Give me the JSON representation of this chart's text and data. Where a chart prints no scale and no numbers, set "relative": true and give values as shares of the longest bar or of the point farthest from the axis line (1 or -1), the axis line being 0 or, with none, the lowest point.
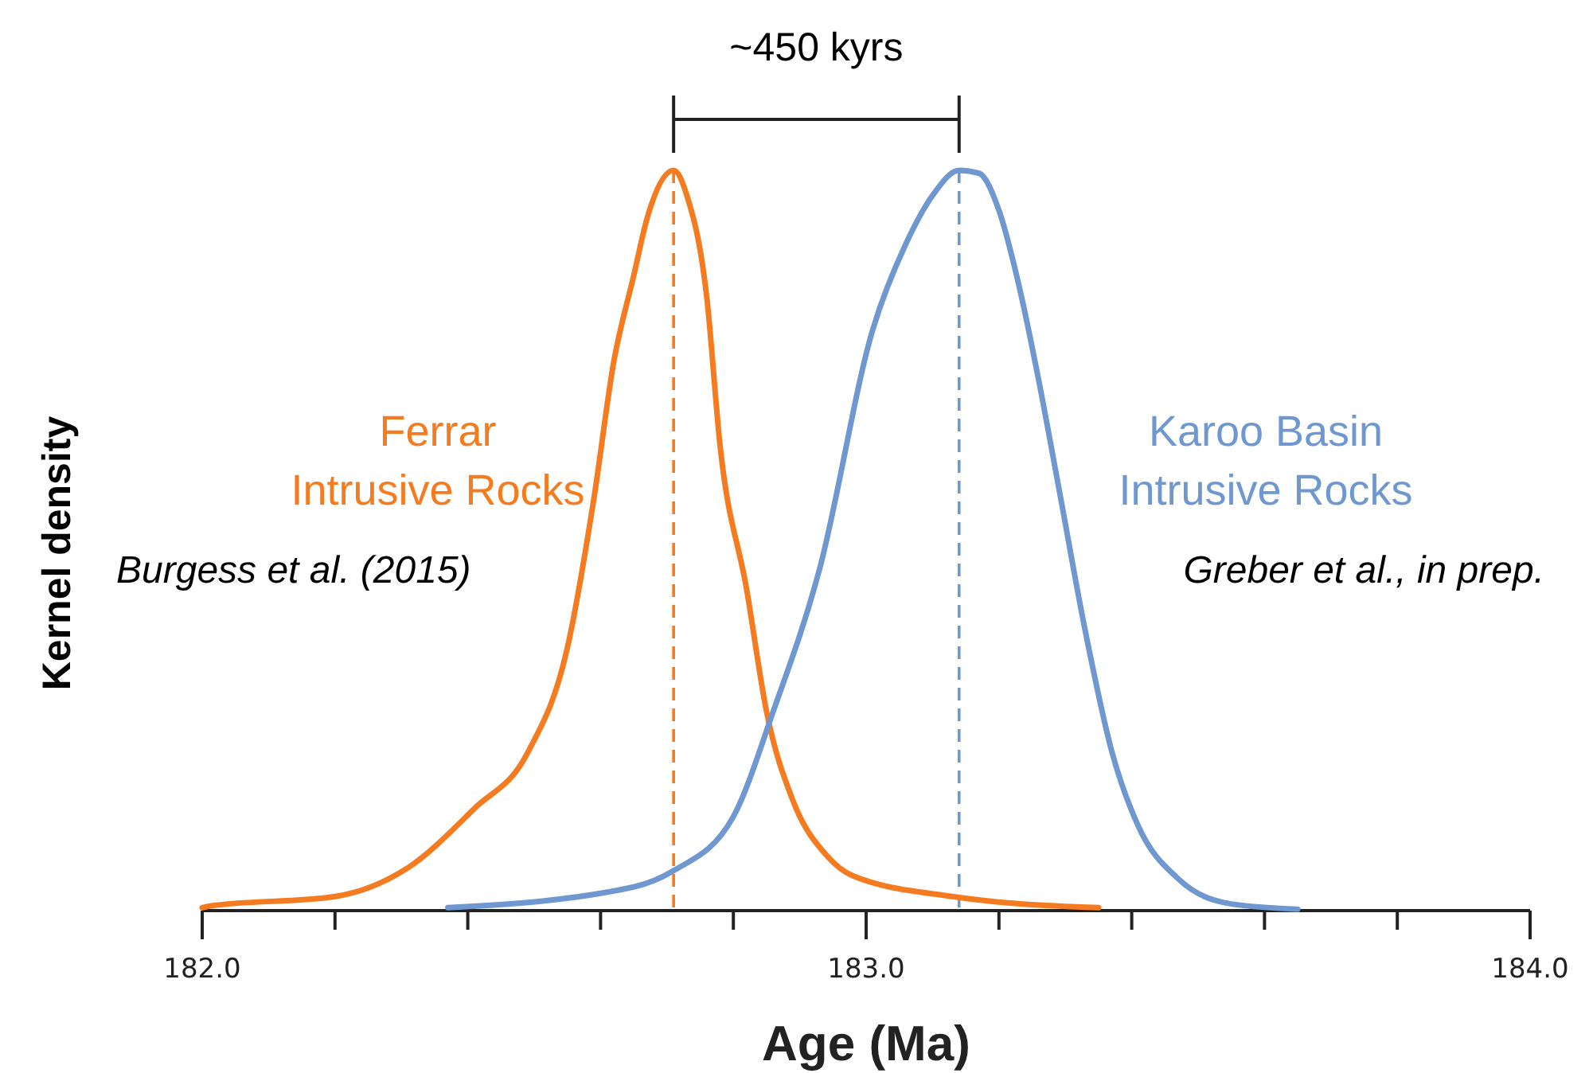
{
  "chart_data": {
    "type": "line",
    "relative": true,
    "xlabel": "Age (Ma)",
    "ylabel": "Kernel density",
    "xlim": [
      182,
      184
    ],
    "xticks": [
      {
        "value": 182,
        "label": "182.0"
      },
      {
        "value": 182.2,
        "label": null
      },
      {
        "value": 182.4,
        "label": null
      },
      {
        "value": 182.6,
        "label": null
      },
      {
        "value": 182.8,
        "label": null
      },
      {
        "value": 183,
        "label": "183.0"
      },
      {
        "value": 183.2,
        "label": null
      },
      {
        "value": 183.4,
        "label": null
      },
      {
        "value": 183.6,
        "label": null
      },
      {
        "value": 183.8,
        "label": null
      },
      {
        "value": 184,
        "label": "184.0"
      }
    ],
    "tick_labels": "x",
    "grid": false,
    "line_style": "solid",
    "series": [
      {
        "name": "Ferrar\nIntrusive Rocks",
        "color": "#f47b20",
        "x": [
          182.0,
          182.01,
          182.2,
          182.31,
          182.41,
          182.49,
          182.55,
          182.59,
          182.62,
          182.65,
          182.67,
          182.71,
          182.73,
          182.76,
          182.78,
          182.82,
          182.85,
          182.89,
          182.94,
          182.98,
          183.13,
          183.35
        ],
        "values": [
          0.004,
          0.006,
          0.019,
          0.058,
          0.138,
          0.213,
          0.355,
          0.557,
          0.742,
          0.858,
          0.935,
          1,
          0.966,
          0.828,
          0.628,
          0.434,
          0.269,
          0.148,
          0.075,
          0.047,
          0.019,
          0.004
        ]
      },
      {
        "name": "Karoo Basin\nIntrusive Rocks",
        "color": "#6f97d0",
        "x": [
          182.37,
          182.65,
          182.71,
          182.8,
          182.86,
          182.93,
          183.01,
          183.06,
          183.1,
          183.14,
          183.17,
          183.2,
          183.23,
          183.26,
          183.29,
          183.33,
          183.37,
          183.41,
          183.47,
          183.55,
          183.65
        ],
        "values": [
          0.004,
          0.032,
          0.054,
          0.127,
          0.269,
          0.462,
          0.785,
          0.901,
          0.966,
          1,
          0.996,
          0.946,
          0.845,
          0.716,
          0.572,
          0.378,
          0.215,
          0.114,
          0.043,
          0.009,
          0.002
        ]
      }
    ],
    "ref_lines": [
      {
        "axis": "x",
        "value": 182.71,
        "color": "#f47b20",
        "line_style": "dashed"
      },
      {
        "axis": "x",
        "value": 183.14,
        "color": "#6f97d0",
        "line_style": "dashed"
      }
    ],
    "annotations": [
      "Burgess et al. (2015)",
      "Greber et al., in prep.",
      "~450 kyrs"
    ]
  }
}
